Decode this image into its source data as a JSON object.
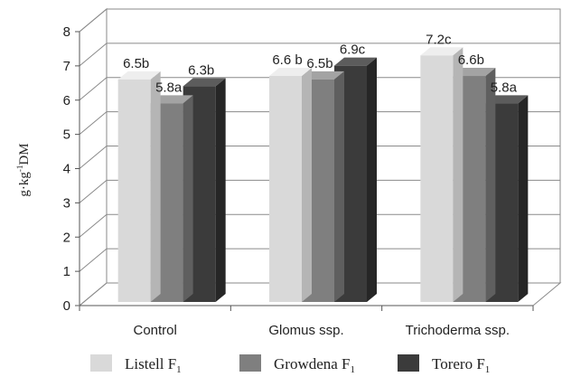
{
  "chart_data": {
    "type": "bar",
    "ylabel_parts": [
      "g·kg",
      "-1",
      "DM"
    ],
    "ylim": [
      0,
      8
    ],
    "yticks": [
      0,
      1,
      2,
      3,
      4,
      5,
      6,
      7,
      8
    ],
    "grid": true,
    "legend_position": "bottom",
    "categories": [
      "Control",
      "Glomus ssp.",
      "Trichoderma ssp."
    ],
    "series": [
      {
        "legend_main": "Listell F",
        "legend_sub": "1",
        "values": [
          6.5,
          6.6,
          7.2
        ],
        "labels": [
          "6.5b",
          "6.6 b",
          "7.2c"
        ],
        "colors": {
          "front": "#d9d9d9",
          "top": "#eeeeee",
          "side": "#b5b5b5"
        }
      },
      {
        "legend_main": "Growdena F",
        "legend_sub": "1",
        "values": [
          5.8,
          6.5,
          6.6
        ],
        "labels": [
          "5.8a",
          "6.5b",
          "6.6b"
        ],
        "colors": {
          "front": "#7f7f7f",
          "top": "#a3a3a3",
          "side": "#5f5f5f"
        }
      },
      {
        "legend_main": "Torero F",
        "legend_sub": "1",
        "values": [
          6.3,
          6.9,
          5.8
        ],
        "labels": [
          "6.3b",
          "6.9c",
          "5.8a"
        ],
        "colors": {
          "front": "#3b3b3b",
          "top": "#5c5c5c",
          "side": "#262626"
        }
      }
    ]
  }
}
